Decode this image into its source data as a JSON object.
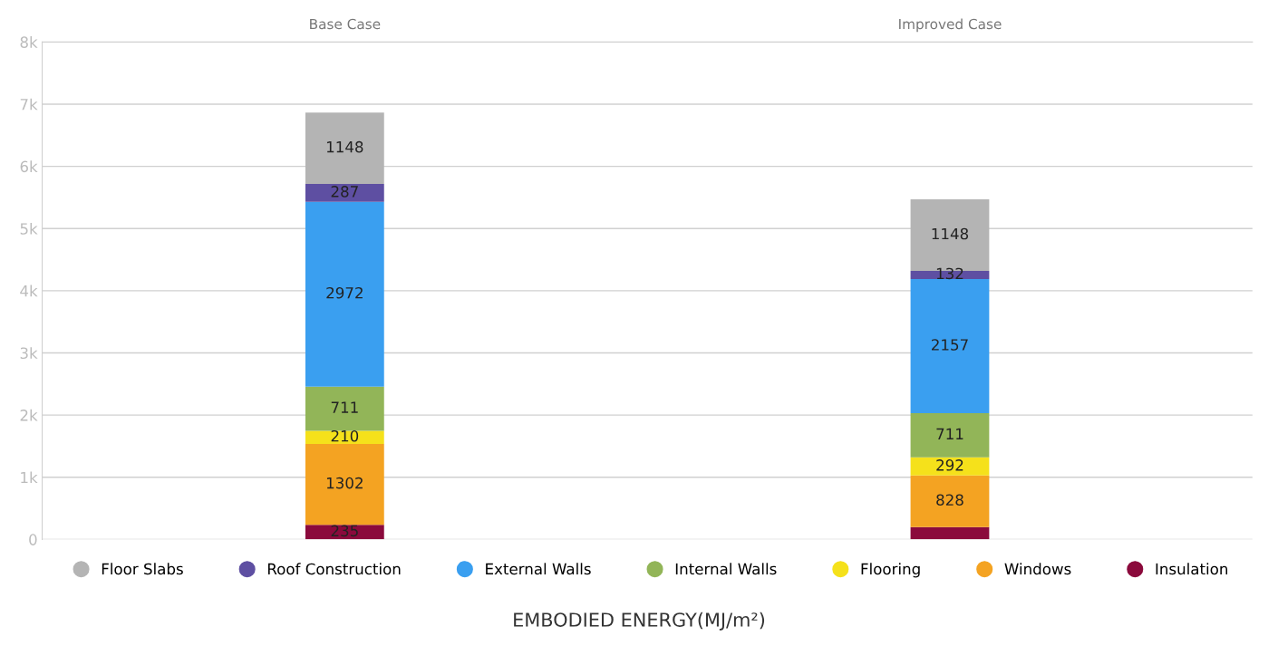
{
  "chart_data": {
    "type": "bar",
    "stacked": true,
    "xlabel": "EMBODIED ENERGY(MJ/m²)",
    "categories": [
      "Base Case",
      "Improved Case"
    ],
    "series": [
      {
        "name": "Insulation",
        "color": "#8b0a3c",
        "values": [
          235,
          200
        ],
        "value_labels": [
          "235",
          null
        ]
      },
      {
        "name": "Windows",
        "color": "#f4a322",
        "values": [
          1302,
          828
        ],
        "value_labels": [
          "1302",
          "828"
        ]
      },
      {
        "name": "Flooring",
        "color": "#f5e11b",
        "values": [
          210,
          292
        ],
        "value_labels": [
          "210",
          "292"
        ]
      },
      {
        "name": "Internal Walls",
        "color": "#92b558",
        "values": [
          711,
          711
        ],
        "value_labels": [
          "711",
          "711"
        ]
      },
      {
        "name": "External Walls",
        "color": "#3a9ff0",
        "values": [
          2972,
          2157
        ],
        "value_labels": [
          "2972",
          "2157"
        ]
      },
      {
        "name": "Roof Construction",
        "color": "#5e4fa2",
        "values": [
          287,
          132
        ],
        "value_labels": [
          "287",
          "132"
        ]
      },
      {
        "name": "Floor Slabs",
        "color": "#b4b4b4",
        "values": [
          1148,
          1148
        ],
        "value_labels": [
          "1148",
          "1148"
        ]
      }
    ],
    "ylim": [
      0,
      8000
    ],
    "yticks": [
      0,
      {
        "value": 1000,
        "label": "1k"
      },
      {
        "value": 2000,
        "label": "2k"
      },
      {
        "value": 3000,
        "label": "3k"
      },
      {
        "value": 4000,
        "label": "4k"
      },
      {
        "value": 5000,
        "label": "5k"
      },
      {
        "value": 6000,
        "label": "6k"
      },
      {
        "value": 7000,
        "label": "7k"
      },
      {
        "value": 8000,
        "label": "8k"
      }
    ],
    "grid": "y",
    "legend": "bottom"
  }
}
